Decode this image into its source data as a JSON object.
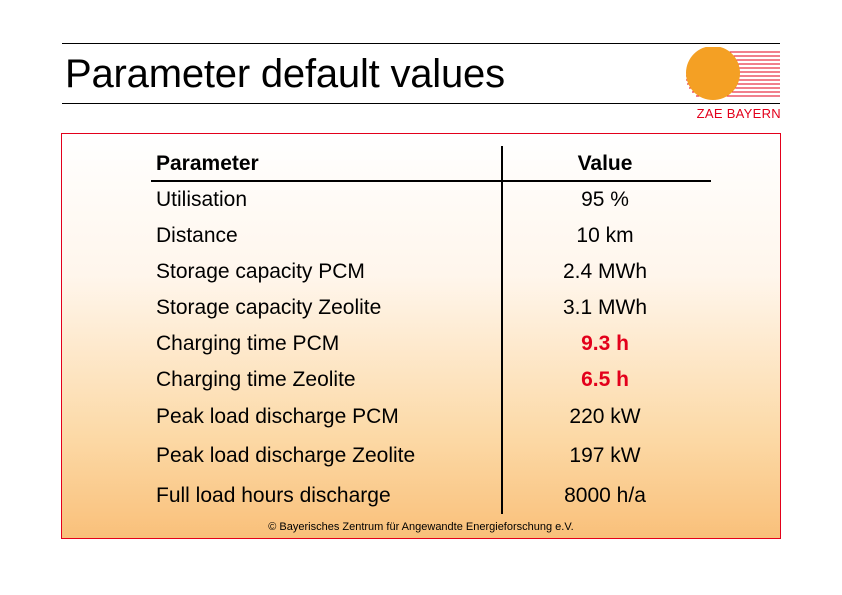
{
  "slide": {
    "title": "Parameter default values",
    "logo_text": "ZAE BAYERN",
    "copyright": "© Bayerisches Zentrum für Angewandte Energieforschung e.V.",
    "colors": {
      "accent_red": "#e3001b",
      "sun_orange": "#f4a024"
    }
  },
  "table": {
    "headers": {
      "parameter": "Parameter",
      "value": "Value"
    },
    "rows": [
      {
        "parameter": "Utilisation",
        "value": "95 %",
        "highlight": false
      },
      {
        "parameter": "Distance",
        "value": "10 km",
        "highlight": false
      },
      {
        "parameter": "Storage capacity PCM",
        "value": "2.4 MWh",
        "highlight": false
      },
      {
        "parameter": "Storage capacity Zeolite",
        "value": "3.1 MWh",
        "highlight": false
      },
      {
        "parameter": "Charging time PCM",
        "value": "9.3 h",
        "highlight": true
      },
      {
        "parameter": "Charging time Zeolite",
        "value": "6.5 h",
        "highlight": true
      },
      {
        "parameter": "Peak load discharge PCM",
        "value": "220 kW",
        "highlight": false
      },
      {
        "parameter": "Peak load discharge Zeolite",
        "value": "197 kW",
        "highlight": false
      },
      {
        "parameter": "Full load hours discharge",
        "value": "8000 h/a",
        "highlight": false
      }
    ]
  }
}
